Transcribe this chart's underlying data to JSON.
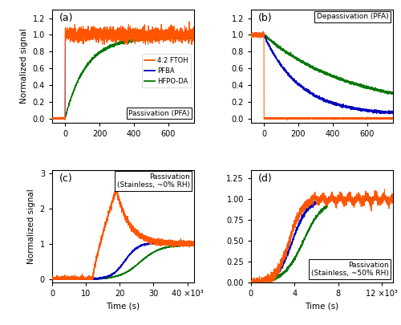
{
  "orange_color": "#FF5500",
  "blue_color": "#0000BB",
  "green_color": "#007700",
  "panel_labels": [
    "(a)",
    "(b)",
    "(c)",
    "(d)"
  ],
  "panel_a": {
    "title": "Passivation (PFA)",
    "xlim": [
      -75,
      750
    ],
    "ylim": [
      -0.05,
      1.3
    ],
    "xticks": [
      0,
      200,
      400,
      600
    ],
    "yticks": [
      0.0,
      0.2,
      0.4,
      0.6,
      0.8,
      1.0,
      1.2
    ]
  },
  "panel_b": {
    "title": "Depassivation (PFA)",
    "xlim": [
      -75,
      750
    ],
    "ylim": [
      -0.05,
      1.3
    ],
    "xticks": [
      0,
      200,
      400,
      600
    ],
    "yticks": [
      0.0,
      0.2,
      0.4,
      0.6,
      0.8,
      1.0,
      1.2
    ]
  },
  "panel_c": {
    "title": "Passivation\n(Stainless, ~0% RH)",
    "xlim": [
      0,
      42000
    ],
    "ylim": [
      -0.1,
      3.1
    ],
    "xticks": [
      0,
      10000,
      20000,
      30000,
      40000
    ],
    "xtick_labels": [
      "0",
      "10",
      "20",
      "30",
      "40 ×10³"
    ],
    "yticks": [
      0,
      1,
      2,
      3
    ]
  },
  "panel_d": {
    "title": "Passivation\n(Stainless, ~50% RH)",
    "xlim": [
      0,
      13000
    ],
    "ylim": [
      0.0,
      1.35
    ],
    "xticks": [
      0,
      4000,
      8000,
      12000
    ],
    "xtick_labels": [
      "0",
      "4",
      "8",
      "12 ×10³"
    ],
    "yticks": [
      0.0,
      0.25,
      0.5,
      0.75,
      1.0,
      1.25
    ]
  },
  "legend_labels": [
    "4:2 FTOH",
    "PFBA",
    "HFPO-DA"
  ],
  "ylabel": "Normalized signal",
  "xlabel": "Time (s)"
}
